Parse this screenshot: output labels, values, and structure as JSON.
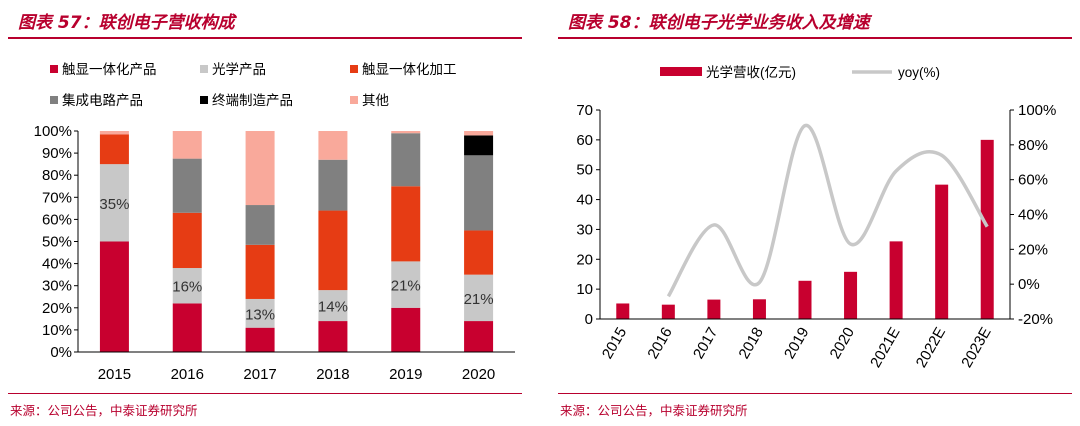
{
  "colors": {
    "accent": "#b8002e",
    "display_integrated": "#c8002f",
    "optical": "#c8c8c8",
    "display_processing": "#e63c14",
    "ic": "#808080",
    "terminal": "#000000",
    "other": "#f9a99b",
    "revenue_bar": "#c8002f",
    "yoy_line": "#c8c8c8"
  },
  "left_panel": {
    "title": "图表 57：联创电子营收构成",
    "source": "来源：公司公告，中泰证券研究所"
  },
  "right_panel": {
    "title": "图表 58：联创电子光学业务收入及增速",
    "source": "来源：公司公告，中泰证券研究所"
  },
  "chart_data": [
    {
      "type": "bar",
      "stacked": true,
      "title": "联创电子营收构成",
      "categories": [
        "2015",
        "2016",
        "2017",
        "2018",
        "2019",
        "2020"
      ],
      "yticks": [
        "0%",
        "10%",
        "20%",
        "30%",
        "40%",
        "50%",
        "60%",
        "70%",
        "80%",
        "90%",
        "100%"
      ],
      "ylim": [
        0,
        100
      ],
      "legend_position": "top",
      "series": [
        {
          "name": "触显一体化产品",
          "color": "#c8002f",
          "values": [
            50,
            22,
            11,
            14,
            20,
            14
          ]
        },
        {
          "name": "光学产品",
          "color": "#c8c8c8",
          "values": [
            35,
            16,
            13,
            14,
            21,
            21
          ]
        },
        {
          "name": "触显一体化加工",
          "color": "#e63c14",
          "values": [
            13.5,
            25,
            24.5,
            36,
            34,
            20
          ]
        },
        {
          "name": "集成电路产品",
          "color": "#808080",
          "values": [
            0,
            24.5,
            18,
            23,
            24,
            34
          ]
        },
        {
          "name": "终端制造产品",
          "color": "#000000",
          "values": [
            0,
            0,
            0,
            0,
            0,
            9
          ]
        },
        {
          "name": "其他",
          "color": "#f9a99b",
          "values": [
            1.5,
            12.5,
            33.5,
            13,
            1,
            2
          ]
        }
      ],
      "data_labels": [
        "35%",
        "16%",
        "13%",
        "14%",
        "21%",
        "21%"
      ]
    },
    {
      "type": "bar+line",
      "title": "联创电子光学业务收入及增速",
      "categories": [
        "2015",
        "2016",
        "2017",
        "2018",
        "2019",
        "2020",
        "2021E",
        "2022E",
        "2023E"
      ],
      "legend_position": "top",
      "bar_series": {
        "name": "光学营收(亿元)",
        "values": [
          5.2,
          4.8,
          6.5,
          6.6,
          12.8,
          15.8,
          26,
          45,
          60
        ]
      },
      "line_series": {
        "name": "yoy(%)",
        "values": [
          null,
          -7,
          34,
          1,
          91,
          23,
          65,
          74,
          33
        ]
      },
      "y_left": {
        "ylim": [
          0,
          70
        ],
        "ticks": [
          "0",
          "10",
          "20",
          "30",
          "40",
          "50",
          "60",
          "70"
        ]
      },
      "y_right": {
        "ylim": [
          -20,
          100
        ],
        "ticks": [
          "-20%",
          "0%",
          "20%",
          "40%",
          "60%",
          "80%",
          "100%"
        ]
      }
    }
  ]
}
